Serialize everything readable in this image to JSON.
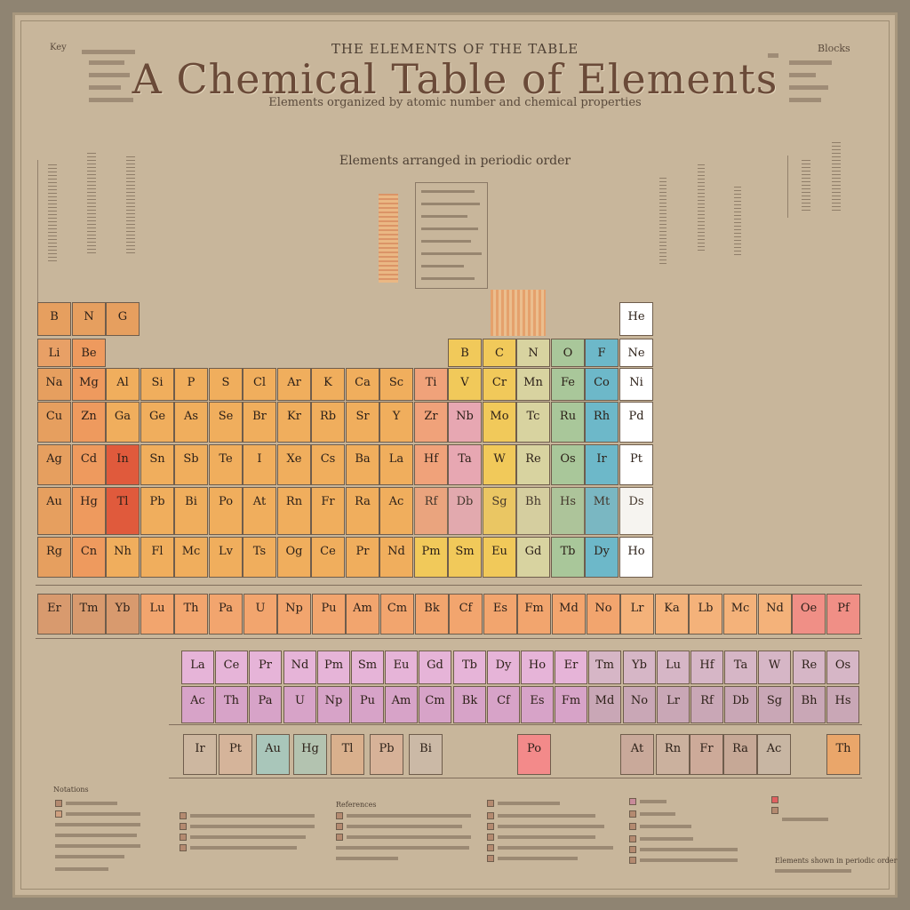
{
  "poster": {
    "kicker": "THE ELEMENTS OF THE TABLE",
    "title": "A Chemical Table of Elements",
    "subtitle": "Elements organized by atomic number and chemical properties",
    "heading2": "Elements arranged in periodic order",
    "corner_left": "Key",
    "corner_right": "Blocks"
  },
  "colors": {
    "background": "#c8b69b",
    "frame": "#8f8472",
    "ink": "#3a2c24",
    "title": "#6a4a38",
    "alkali": "#e69f5f",
    "alkaline": "#ee9a5e",
    "transition": "#f0ae5d",
    "post_transition": "#f1c95a",
    "metalloid": "#d8d3a0",
    "nonmetal": "#a9c79a",
    "halogen": "#6db8c9",
    "noble_gas": "#ffffff",
    "lanthanide": "#e6b4d8",
    "actinide": "#d7a3c8",
    "highlight_red": "#e05a3c",
    "highlight_pink": "#f38a8a"
  },
  "main_grid": [
    [
      "B",
      "N",
      "G",
      "",
      "",
      "",
      "",
      "",
      "",
      "",
      "",
      "",
      "",
      "",
      "",
      "",
      "",
      "He"
    ],
    [
      "Li",
      "Be",
      "",
      "",
      "",
      "",
      "",
      "",
      "",
      "",
      "",
      "",
      "B",
      "C",
      "N",
      "O",
      "F",
      "Ne"
    ],
    [
      "Na",
      "Mg",
      "Al",
      "Si",
      "P",
      "S",
      "Cl",
      "Ar",
      "K",
      "Ca",
      "Sc",
      "Ti",
      "V",
      "Cr",
      "Mn",
      "Fe",
      "Co",
      "Ni"
    ],
    [
      "Cu",
      "Zn",
      "Ga",
      "Ge",
      "As",
      "Se",
      "Br",
      "Kr",
      "Rb",
      "Sr",
      "Y",
      "Zr",
      "Nb",
      "Mo",
      "Tc",
      "Ru",
      "Rh",
      "Pd"
    ],
    [
      "Ag",
      "Cd",
      "In",
      "Sn",
      "Sb",
      "Te",
      "I",
      "Xe",
      "Cs",
      "Ba",
      "La",
      "Hf",
      "Ta",
      "W",
      "Re",
      "Os",
      "Ir",
      "Pt"
    ],
    [
      "Au",
      "Hg",
      "Tl",
      "Pb",
      "Bi",
      "Po",
      "At",
      "Rn",
      "Fr",
      "Ra",
      "Ac",
      "Rf",
      "Db",
      "Sg",
      "Bh",
      "Hs",
      "Mt",
      "Ds"
    ],
    [
      "Rg",
      "Cn",
      "Nh",
      "Fl",
      "Mc",
      "Lv",
      "Ts",
      "Og",
      "Ce",
      "Pr",
      "Nd",
      "Pm",
      "Sm",
      "Eu",
      "Gd",
      "Tb",
      "Dy",
      "Ho"
    ]
  ],
  "band_row": [
    "Er",
    "Tm",
    "Yb",
    "Lu",
    "Th",
    "Pa",
    "U",
    "Np",
    "Pu",
    "Am",
    "Cm",
    "Bk",
    "Cf",
    "Es",
    "Fm",
    "Md",
    "No",
    "Lr",
    "Ka",
    "Lb",
    "Mc",
    "Nd",
    "Oe",
    "Pf"
  ],
  "f_block_1": [
    "La",
    "Ce",
    "Pr",
    "Nd",
    "Pm",
    "Sm",
    "Eu",
    "Gd",
    "Tb",
    "Dy",
    "Ho",
    "Er",
    "Tm",
    "Yb",
    "Lu",
    "Hf",
    "Ta",
    "W",
    "Re",
    "Os"
  ],
  "f_block_2": [
    "Ac",
    "Th",
    "Pa",
    "U",
    "Np",
    "Pu",
    "Am",
    "Cm",
    "Bk",
    "Cf",
    "Es",
    "Fm",
    "Md",
    "No",
    "Lr",
    "Rf",
    "Db",
    "Sg",
    "Bh",
    "Hs"
  ],
  "bottom_row": [
    "Ir",
    "Pt",
    "Au",
    "Hg",
    "Tl",
    "Pb",
    "Bi",
    "Po",
    "At",
    "Rn",
    "Fr",
    "Ra",
    "Ac",
    "Th"
  ],
  "footnotes": {
    "left_heading": "Notations",
    "mid_heading": "References",
    "right_note": "Elements shown in periodic order"
  }
}
